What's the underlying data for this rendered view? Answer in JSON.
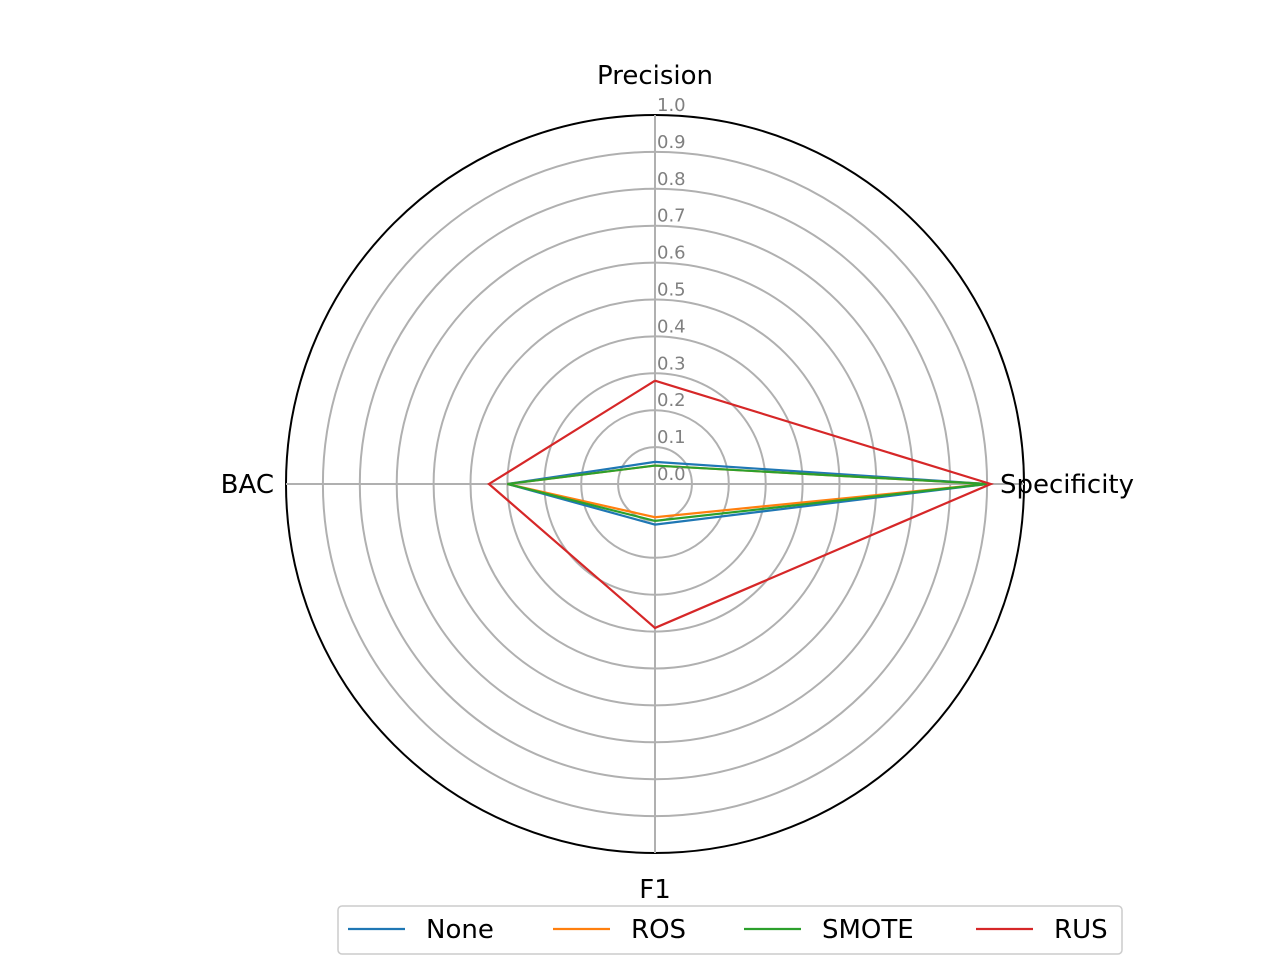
{
  "chart_data": {
    "type": "radar",
    "axes": [
      "Precision",
      "Specificity",
      "F1",
      "BAC"
    ],
    "rlim": [
      0,
      1.0
    ],
    "rticks": [
      "0.0",
      "0.1",
      "0.2",
      "0.3",
      "0.4",
      "0.5",
      "0.6",
      "0.7",
      "0.8",
      "0.9",
      "1.0"
    ],
    "grid": true,
    "legend_position": "bottom",
    "series": [
      {
        "name": "None",
        "color": "#1f77b4",
        "values": [
          0.06,
          0.9,
          0.11,
          0.4
        ]
      },
      {
        "name": "ROS",
        "color": "#ff7f0e",
        "values": [
          0.05,
          0.9,
          0.09,
          0.4
        ]
      },
      {
        "name": "SMOTE",
        "color": "#2ca02c",
        "values": [
          0.05,
          0.9,
          0.1,
          0.4
        ]
      },
      {
        "name": "RUS",
        "color": "#d62728",
        "values": [
          0.28,
          0.91,
          0.39,
          0.45
        ]
      }
    ]
  }
}
